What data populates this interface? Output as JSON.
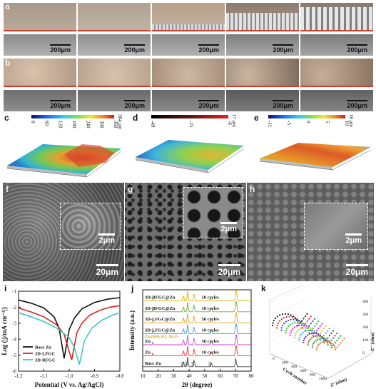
{
  "panels": {
    "a": "a",
    "b": "b",
    "c": "c",
    "d": "d",
    "e": "e",
    "f": "f",
    "g": "g",
    "h": "h",
    "i": "i",
    "j": "j",
    "k": "k"
  },
  "micro_scale": "200μm",
  "colorbars": {
    "c": {
      "ticks": [
        "0",
        "60",
        "120",
        "180",
        "240",
        "300",
        "360"
      ],
      "unit": "364 μm"
    },
    "d": {
      "ticks": [
        "-49",
        "-25",
        "-6"
      ],
      "unit": "17 μm"
    },
    "e": {
      "ticks": [
        "-11",
        "-5",
        "0",
        "5",
        "10"
      ],
      "unit": "16 μm"
    }
  },
  "sem": {
    "f": {
      "scale": "20μm",
      "inset_scale": "2μm"
    },
    "g": {
      "scale": "20μm",
      "inset_scale": "2μm"
    },
    "h": {
      "scale": "20μm",
      "inset_scale": "2μm"
    }
  },
  "chart_data": [
    {
      "type": "line",
      "panel": "i",
      "xlabel": "Potential (V vs. Ag/AgCl)",
      "ylabel": "Log (|j/mA cm⁻²|)",
      "xlim": [
        -1.2,
        -0.8
      ],
      "ylim": [
        -6,
        -1
      ],
      "xticks": [
        "-1.2",
        "-1.1",
        "-1.0",
        "-0.9",
        "-0.8"
      ],
      "yticks": [
        "-1",
        "-2",
        "-3",
        "-4",
        "-5",
        "-6"
      ],
      "series": [
        {
          "name": "Bare Zn",
          "color": "#111111",
          "corrosion_potential": -1.02,
          "min_logj": -5.2,
          "x": [
            -1.2,
            -1.15,
            -1.1,
            -1.06,
            -1.04,
            -1.02,
            -1.0,
            -0.98,
            -0.95,
            -0.9,
            -0.85,
            -0.8
          ],
          "y": [
            -1.55,
            -1.75,
            -2.05,
            -2.6,
            -3.3,
            -5.2,
            -3.4,
            -2.7,
            -2.1,
            -1.7,
            -1.5,
            -1.4
          ]
        },
        {
          "name": "3D-LFGC",
          "color": "#e02020",
          "corrosion_potential": -0.99,
          "min_logj": -5.3,
          "x": [
            -1.2,
            -1.15,
            -1.1,
            -1.05,
            -1.02,
            -0.99,
            -0.97,
            -0.95,
            -0.92,
            -0.88,
            -0.84,
            -0.8
          ],
          "y": [
            -2.05,
            -2.3,
            -2.6,
            -3.1,
            -3.7,
            -5.3,
            -3.6,
            -3.0,
            -2.5,
            -2.2,
            -2.0,
            -1.9
          ]
        },
        {
          "name": "3D-RFGC",
          "color": "#3cc8c8",
          "corrosion_potential": -0.96,
          "min_logj": -5.6,
          "x": [
            -1.2,
            -1.15,
            -1.1,
            -1.05,
            -1.0,
            -0.98,
            -0.96,
            -0.94,
            -0.91,
            -0.87,
            -0.83,
            -0.8
          ],
          "y": [
            -2.35,
            -2.6,
            -2.9,
            -3.3,
            -3.9,
            -4.5,
            -5.6,
            -4.1,
            -3.3,
            -2.8,
            -2.5,
            -2.35
          ]
        }
      ]
    },
    {
      "type": "line",
      "panel": "j",
      "xlabel": "2θ (degree)",
      "ylabel": "Intensity (a.u.)",
      "xlim": [
        10,
        80
      ],
      "xticks": [
        "10",
        "20",
        "30",
        "40",
        "50",
        "60",
        "70",
        "80"
      ],
      "series": [
        {
          "name": "3D-RFGC@Zn",
          "cycles": "50 cycles",
          "color": "#e6b000"
        },
        {
          "name": "3D-RFGC@Zn",
          "cycles": "10 cycles",
          "color": "#66b032"
        },
        {
          "name": "3D-LFGC@Zn",
          "cycles": "50 cycles",
          "color": "#e8a020"
        },
        {
          "name": "3D-LFGC@Zn",
          "cycles": "10 cycles",
          "color": "#3aa0d8"
        },
        {
          "name": "Zn",
          "cycles": "50 cycles",
          "color": "#c84ac8"
        },
        {
          "name": "Zn",
          "cycles": "10 cycles",
          "color": "#e03a3a"
        },
        {
          "name": "Bare Zn",
          "cycles": "",
          "color": "#444444"
        }
      ],
      "annotations": [
        "Zn₄(OH)₆SO₄·5H₂O",
        "002",
        "100",
        "101",
        "102"
      ],
      "peaks_2theta": [
        36.3,
        39.0,
        43.2,
        54.3,
        70.1,
        70.6
      ]
    },
    {
      "type": "scatter",
      "panel": "k",
      "xlabel": "Z' (ohm)",
      "ylabel": "-Z'' (ohm)",
      "zlabel": "Cycle number",
      "zticks": [
        "0",
        "200",
        "400",
        "600",
        "800",
        "1000"
      ],
      "yticks": [
        "0",
        "100",
        "200",
        "300",
        "400"
      ],
      "series_colors": [
        "#1a1a1a",
        "#e02020",
        "#2040e0",
        "#20c020",
        "#e020e0",
        "#e0c020",
        "#20c0e0",
        "#7020a0",
        "#806020",
        "#20a060",
        "#e08020"
      ]
    }
  ]
}
